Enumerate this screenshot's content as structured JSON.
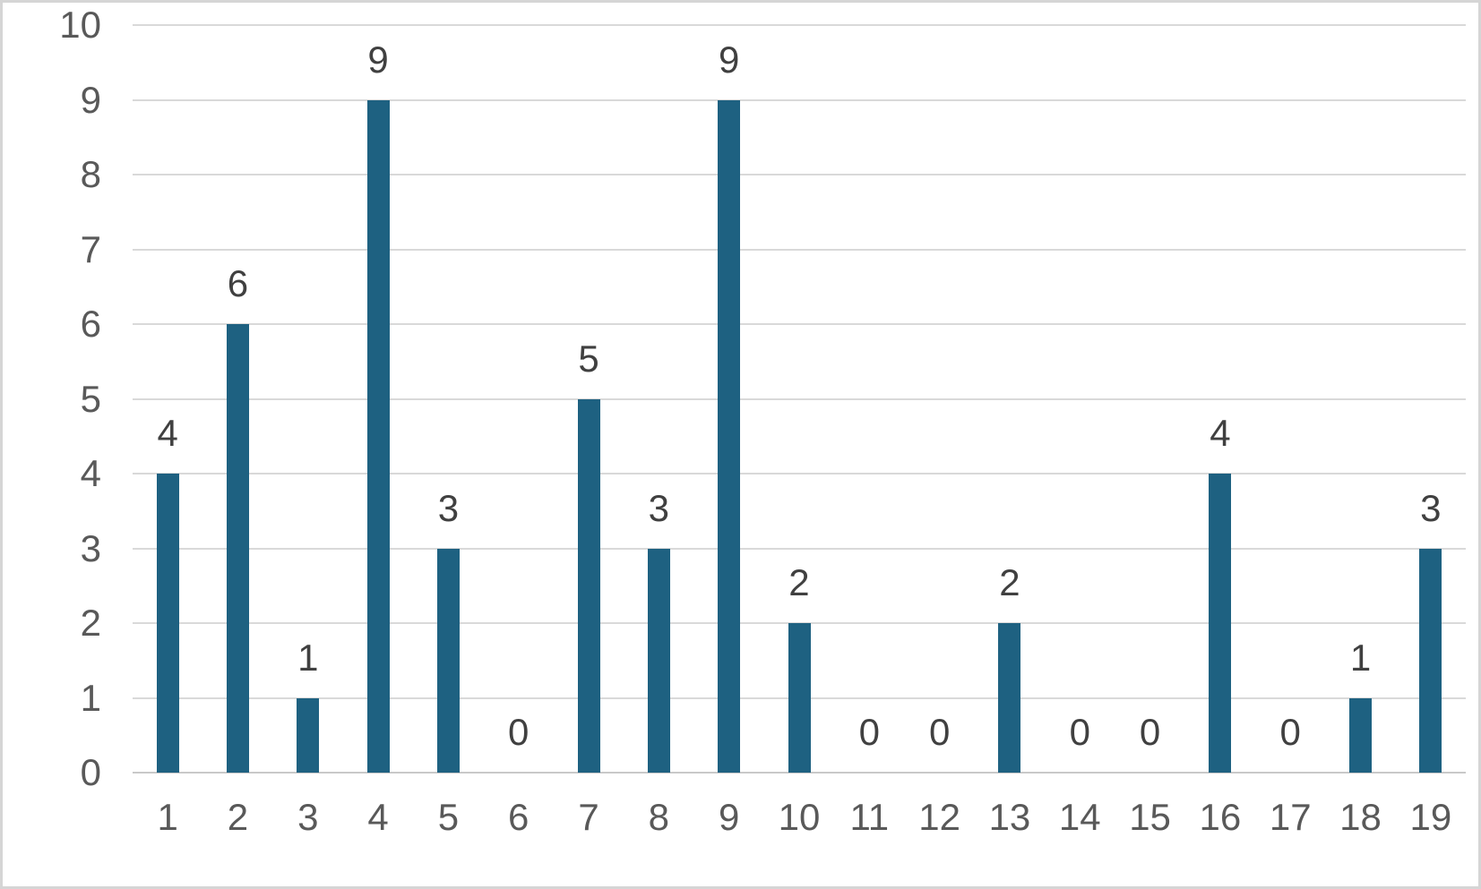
{
  "chart_data": {
    "type": "bar",
    "categories": [
      "1",
      "2",
      "3",
      "4",
      "5",
      "6",
      "7",
      "8",
      "9",
      "10",
      "11",
      "12",
      "13",
      "14",
      "15",
      "16",
      "17",
      "18",
      "19"
    ],
    "values": [
      4,
      6,
      1,
      9,
      3,
      0,
      5,
      3,
      9,
      2,
      0,
      0,
      2,
      0,
      0,
      4,
      0,
      1,
      3
    ],
    "title": "",
    "xlabel": "",
    "ylabel": "",
    "ylim": [
      0,
      10
    ],
    "ytick_step": 1,
    "yticks": [
      "0",
      "1",
      "2",
      "3",
      "4",
      "5",
      "6",
      "7",
      "8",
      "9",
      "10"
    ],
    "grid": true,
    "legend": false,
    "data_labels_visible": true
  },
  "colors": {
    "bar": "#1E6181",
    "gridline": "#D9D9D9",
    "axis_line": "#C9C9C9",
    "axis_label": "#595959",
    "data_label": "#404040",
    "frame_border": "#D5D5D5",
    "background": "#FFFFFF"
  }
}
